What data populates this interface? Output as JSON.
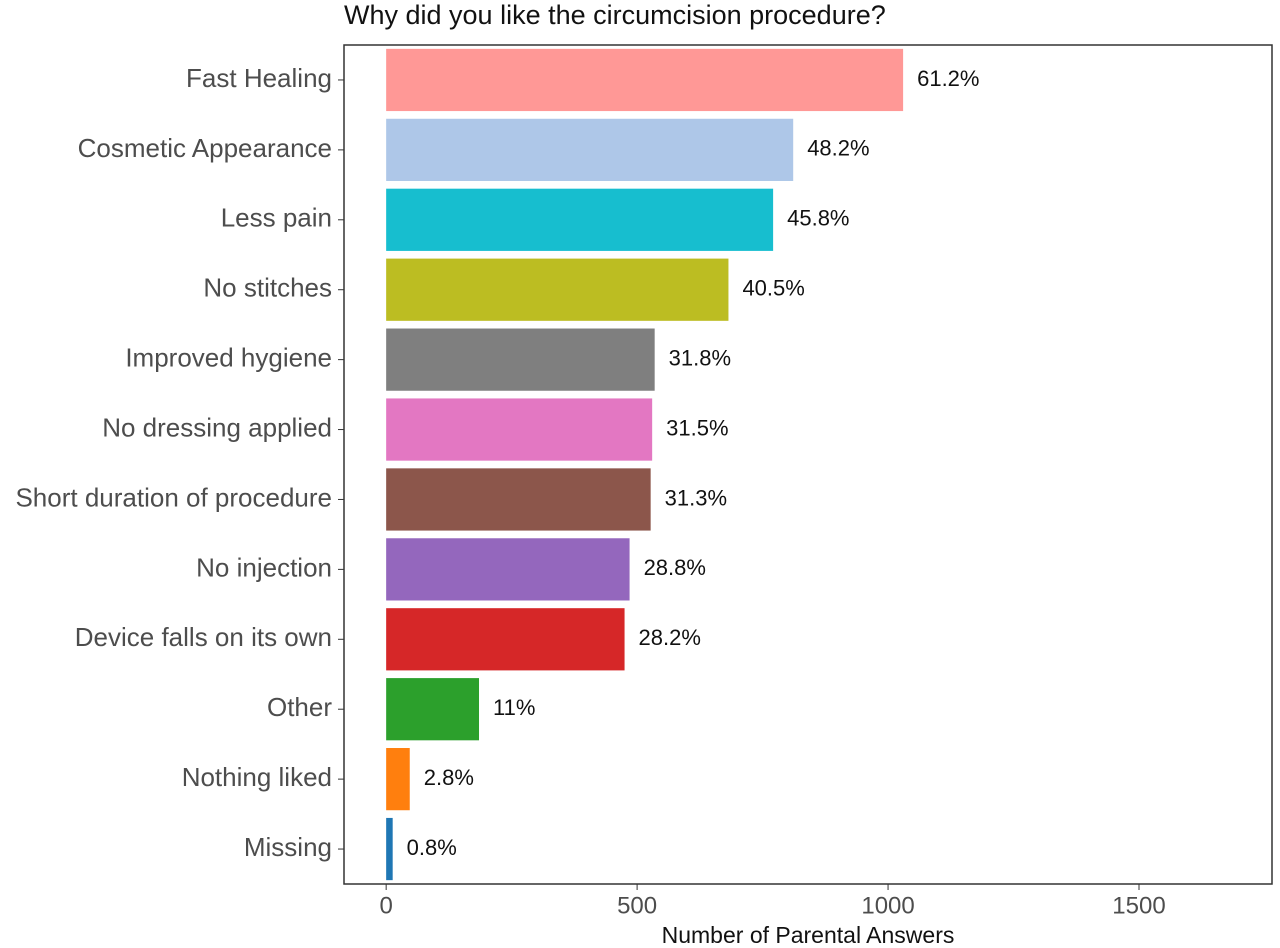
{
  "chart_data": {
    "type": "bar",
    "orientation": "horizontal",
    "title": "Why did you like the circumcision procedure?",
    "x_label": "Number of Parental Answers",
    "categories": [
      "Fast Healing",
      "Cosmetic Appearance",
      "Less pain",
      "No stitches",
      "Improved hygiene",
      "No dressing applied",
      "Short duration of procedure",
      "No injection",
      "Device falls on its own",
      "Other",
      "Nothing liked",
      "Missing"
    ],
    "values": [
      1030,
      811,
      771,
      682,
      535,
      530,
      527,
      485,
      475,
      185,
      47,
      13
    ],
    "value_labels": [
      "61.2%",
      "48.2%",
      "45.8%",
      "40.5%",
      "31.8%",
      "31.5%",
      "31.3%",
      "28.8%",
      "28.2%",
      "11%",
      "2.8%",
      "0.8%"
    ],
    "colors": [
      "#ff9896",
      "#aec7e8",
      "#17becf",
      "#bcbd22",
      "#7f7f7f",
      "#e377c2",
      "#8c564b",
      "#9467bd",
      "#d62728",
      "#2ca02c",
      "#ff7f0e",
      "#1f77b4"
    ],
    "xlim": [
      -84,
      1765
    ],
    "xticks": [
      0,
      500,
      1000,
      1500
    ],
    "grid": false
  }
}
